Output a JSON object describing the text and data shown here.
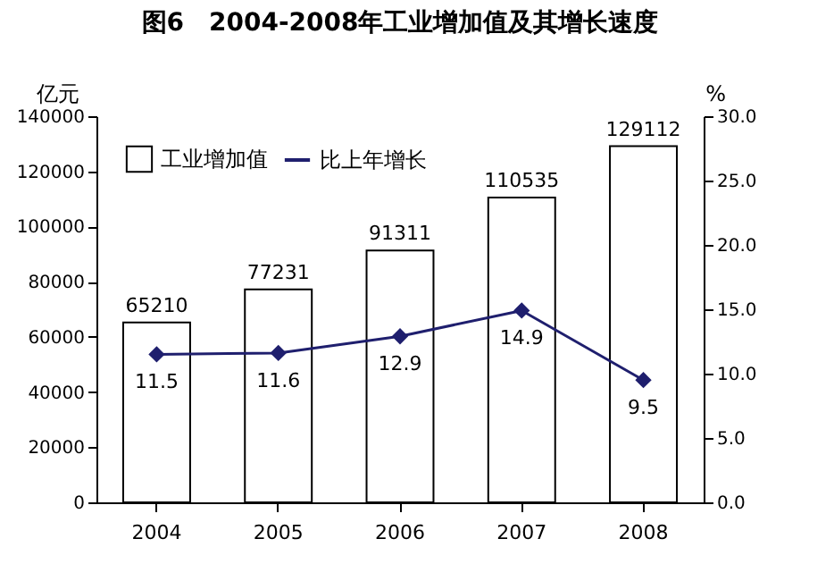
{
  "chart_data": {
    "type": "bar",
    "title": "图6　2004-2008年工业增加值及其增长速度",
    "ylabel": "亿元",
    "y2label": "%",
    "categories": [
      "2004",
      "2005",
      "2006",
      "2007",
      "2008"
    ],
    "series": [
      {
        "name": "工业增加值",
        "color": "#ffffff",
        "values": [
          65210,
          77231,
          91311,
          110535,
          129112
        ]
      },
      {
        "name": "比上年增长",
        "type": "line",
        "axis": "y2",
        "color": "#1f1f6e",
        "values": [
          11.5,
          11.6,
          12.9,
          14.9,
          9.5
        ]
      }
    ],
    "ylim": [
      0,
      140000
    ],
    "yticks": [
      0,
      20000,
      40000,
      60000,
      80000,
      100000,
      120000,
      140000
    ],
    "y2lim": [
      0,
      30
    ],
    "y2ticks": [
      {
        "value": 0,
        "label": "0.0"
      },
      {
        "value": 5,
        "label": "5.0"
      },
      {
        "value": 10,
        "label": "10.0"
      },
      {
        "value": 15,
        "label": "15.0"
      },
      {
        "value": 20,
        "label": "20.0"
      },
      {
        "value": 25,
        "label": "25.0"
      },
      {
        "value": 30,
        "label": "30.0"
      }
    ],
    "data_labels": true,
    "legend": "top left",
    "marker": "diamond",
    "line_style": "solid",
    "grid": false
  }
}
